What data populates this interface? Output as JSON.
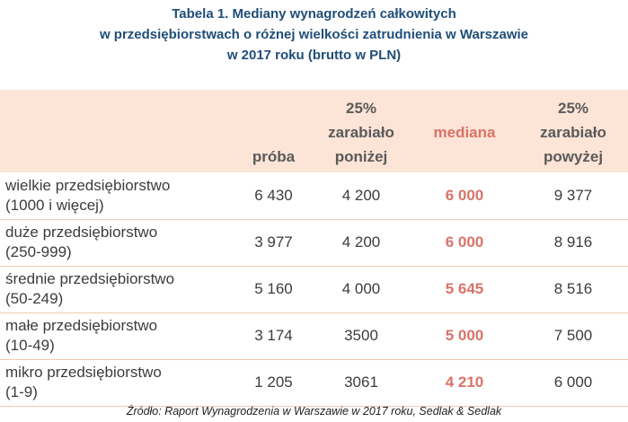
{
  "title": {
    "line1": "Tabela 1. Mediany wynagrodzeń całkowitych",
    "line2": "w przedsiębiorstwach o różnej wielkości zatrudnienia w Warszawie",
    "line3": "w 2017 roku (brutto w PLN)"
  },
  "table": {
    "headers": {
      "proba": "próba",
      "p25": [
        "25%",
        "zarabiało",
        "poniżej"
      ],
      "median": "mediana",
      "p75": [
        "25%",
        "zarabiało",
        "powyżej"
      ]
    },
    "rows": [
      {
        "label1": "wielkie przedsiębiorstwo",
        "label2": "(1000 i więcej)",
        "proba": "6 430",
        "p25": "4 200",
        "median": "6 000",
        "p75": "9 377"
      },
      {
        "label1": "duże przedsiębiorstwo",
        "label2": "(250-999)",
        "proba": "3 977",
        "p25": "4 200",
        "median": "6 000",
        "p75": "8 916"
      },
      {
        "label1": "średnie przedsiębiorstwo",
        "label2": "(50-249)",
        "proba": "5 160",
        "p25": "4 000",
        "median": "5 645",
        "p75": "8 516"
      },
      {
        "label1": "małe przedsiębiorstwo",
        "label2": "(10-49)",
        "proba": "3 174",
        "p25": "3500",
        "median": "5 000",
        "p75": "7 500"
      },
      {
        "label1": "mikro przedsiębiorstwo",
        "label2": "(1-9)",
        "proba": "1 205",
        "p25": "3061",
        "median": "4 210",
        "p75": "6 000"
      }
    ]
  },
  "source": "Źródło: Raport Wynagrodzenia w Warszawie w 2017 roku, Sedlak & Sedlak",
  "colors": {
    "title": "#1f4e79",
    "header_bg": "#fce4d6",
    "median": "#d9736a",
    "row_border": "#f3c9b0"
  }
}
